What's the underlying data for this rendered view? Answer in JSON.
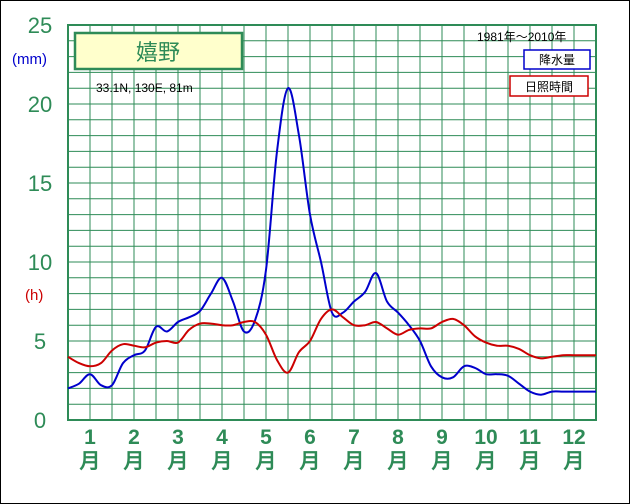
{
  "chart_data": {
    "type": "line",
    "title": "嬉野",
    "location_label": "33.1N,  130E,  81m",
    "period_label": "1981年〜2010年",
    "y_unit_precip": "(mm)",
    "y_unit_sun": "(h)",
    "yticks": [
      "0",
      "5",
      "10",
      "15",
      "20",
      "25"
    ],
    "ylim": [
      0,
      25
    ],
    "xlim": [
      1,
      13
    ],
    "months": [
      {
        "num": "1",
        "suffix": "月"
      },
      {
        "num": "2",
        "suffix": "月"
      },
      {
        "num": "3",
        "suffix": "月"
      },
      {
        "num": "4",
        "suffix": "月"
      },
      {
        "num": "5",
        "suffix": "月"
      },
      {
        "num": "6",
        "suffix": "月"
      },
      {
        "num": "7",
        "suffix": "月"
      },
      {
        "num": "8",
        "suffix": "月"
      },
      {
        "num": "9",
        "suffix": "月"
      },
      {
        "num": "10",
        "suffix": "月"
      },
      {
        "num": "11",
        "suffix": "月"
      },
      {
        "num": "12",
        "suffix": "月"
      }
    ],
    "grid": true,
    "series": [
      {
        "name": "降水量",
        "color": "#0000cc",
        "x": [
          1.0,
          1.25,
          1.5,
          1.75,
          2.0,
          2.25,
          2.5,
          2.75,
          3.0,
          3.25,
          3.5,
          3.75,
          4.0,
          4.25,
          4.5,
          4.75,
          5.0,
          5.25,
          5.5,
          5.75,
          6.0,
          6.25,
          6.5,
          6.75,
          7.0,
          7.25,
          7.5,
          7.75,
          8.0,
          8.25,
          8.5,
          8.75,
          9.0,
          9.25,
          9.5,
          9.75,
          10.0,
          10.25,
          10.5,
          10.75,
          11.0,
          11.25,
          11.5,
          11.75,
          12.0,
          12.25,
          12.5,
          12.75,
          13.0
        ],
        "values": [
          2.0,
          2.3,
          2.9,
          2.2,
          2.2,
          3.6,
          4.1,
          4.4,
          5.9,
          5.6,
          6.2,
          6.5,
          6.9,
          8.0,
          9.0,
          7.5,
          5.6,
          6.3,
          9.5,
          17.0,
          21.0,
          18.0,
          13.0,
          10.0,
          6.8,
          6.8,
          7.5,
          8.1,
          9.3,
          7.5,
          6.8,
          6.0,
          5.0,
          3.4,
          2.7,
          2.7,
          3.4,
          3.3,
          2.9,
          2.9,
          2.8,
          2.3,
          1.8,
          1.6,
          1.8,
          1.8,
          1.8,
          1.8,
          1.8
        ]
      },
      {
        "name": "日照時間",
        "color": "#cc0000",
        "x": [
          1.0,
          1.25,
          1.5,
          1.75,
          2.0,
          2.25,
          2.5,
          2.75,
          3.0,
          3.25,
          3.5,
          3.75,
          4.0,
          4.25,
          4.5,
          4.75,
          5.0,
          5.25,
          5.5,
          5.75,
          6.0,
          6.25,
          6.5,
          6.75,
          7.0,
          7.25,
          7.5,
          7.75,
          8.0,
          8.25,
          8.5,
          8.75,
          9.0,
          9.25,
          9.5,
          9.75,
          10.0,
          10.25,
          10.5,
          10.75,
          11.0,
          11.25,
          11.5,
          11.75,
          12.0,
          12.25,
          12.5,
          12.75,
          13.0
        ],
        "values": [
          4.0,
          3.6,
          3.4,
          3.6,
          4.4,
          4.8,
          4.7,
          4.6,
          4.9,
          5.0,
          4.9,
          5.7,
          6.1,
          6.1,
          6.0,
          6.0,
          6.2,
          6.2,
          5.4,
          3.8,
          3.0,
          4.3,
          5.0,
          6.4,
          7.0,
          6.5,
          6.0,
          6.0,
          6.2,
          5.8,
          5.4,
          5.7,
          5.8,
          5.8,
          6.2,
          6.4,
          6.0,
          5.3,
          4.9,
          4.7,
          4.7,
          4.5,
          4.1,
          3.9,
          4.0,
          4.1,
          4.1,
          4.1,
          4.1
        ]
      }
    ]
  }
}
